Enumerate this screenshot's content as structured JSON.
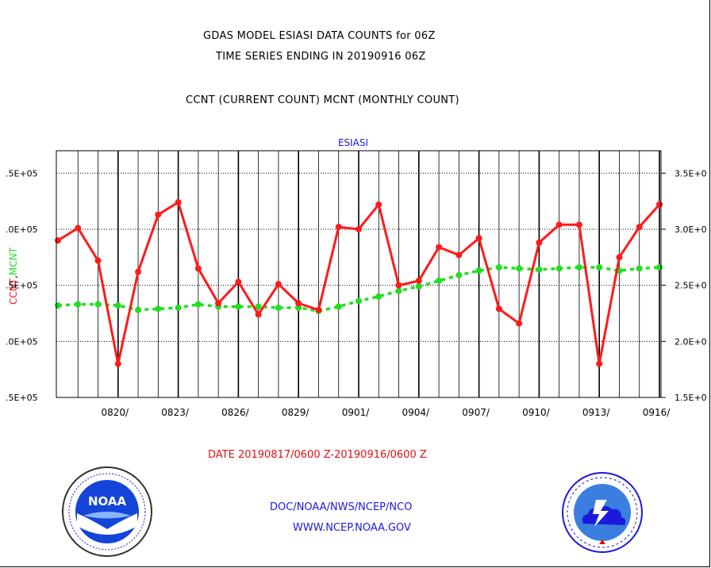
{
  "header": {
    "line1": "GDAS MODEL ESIASI DATA COUNTS for 06Z",
    "line2": "TIME SERIES ENDING IN 20190916 06Z",
    "line3": "CCNT (CURRENT COUNT) MCNT (MONTHLY COUNT)"
  },
  "footer": {
    "date_range": "DATE 20190817/0600 Z-20190916/0600 Z",
    "org": "DOC/NOAA/NWS/NCEP/NCO",
    "url": "WWW.NCEP.NOAA.GOV"
  },
  "logos": {
    "left": {
      "icon": "noaa-logo",
      "text": "NOAA"
    },
    "right": {
      "icon": "national-weather-service-logo"
    }
  },
  "chart_data": {
    "type": "line",
    "title": "ESIASI",
    "ylabel_ccnt": "CCNT",
    "ylabel_mcnt": "MCNT",
    "ylabel_sep": ",",
    "left_ticks": [
      ".5E+05",
      ".0E+05",
      ".5E+05",
      ".0E+05",
      ".5E+05"
    ],
    "right_ticks": [
      "3.5E+0",
      "3.0E+0",
      "2.5E+0",
      "2.0E+0",
      "1.5E+0"
    ],
    "ylim": [
      150000,
      370000
    ],
    "x_ticks": [
      "0820/",
      "0823/",
      "0826/",
      "0829/",
      "0901/",
      "0904/",
      "0907/",
      "0910/",
      "0913/",
      "0916/"
    ],
    "x_dates": [
      "0817",
      "0818",
      "0819",
      "0820",
      "0821",
      "0822",
      "0823",
      "0824",
      "0825",
      "0826",
      "0827",
      "0828",
      "0829",
      "0830",
      "0831",
      "0901",
      "0902",
      "0903",
      "0904",
      "0905",
      "0906",
      "0907",
      "0908",
      "0909",
      "0910",
      "0911",
      "0912",
      "0913",
      "0914",
      "0915",
      "0916"
    ],
    "grid": true,
    "series": [
      {
        "name": "CCNT",
        "color": "#ff1a1a",
        "values": [
          290000,
          301000,
          272000,
          180000,
          262000,
          313000,
          324000,
          265000,
          234000,
          253000,
          224000,
          251000,
          234000,
          228000,
          302000,
          300000,
          322000,
          250000,
          254000,
          284000,
          277000,
          292000,
          229000,
          216000,
          288000,
          304000,
          304000,
          180000,
          275000,
          302000,
          322000
        ]
      },
      {
        "name": "MCNT",
        "color": "#22dd22",
        "values": [
          232000,
          233000,
          233000,
          232000,
          228000,
          229000,
          230000,
          233000,
          231000,
          231000,
          231000,
          230000,
          230000,
          227000,
          231000,
          236000,
          240000,
          245000,
          249000,
          254000,
          259000,
          263000,
          266000,
          265000,
          264000,
          265000,
          266000,
          266000,
          263000,
          265000,
          266000
        ]
      }
    ]
  }
}
